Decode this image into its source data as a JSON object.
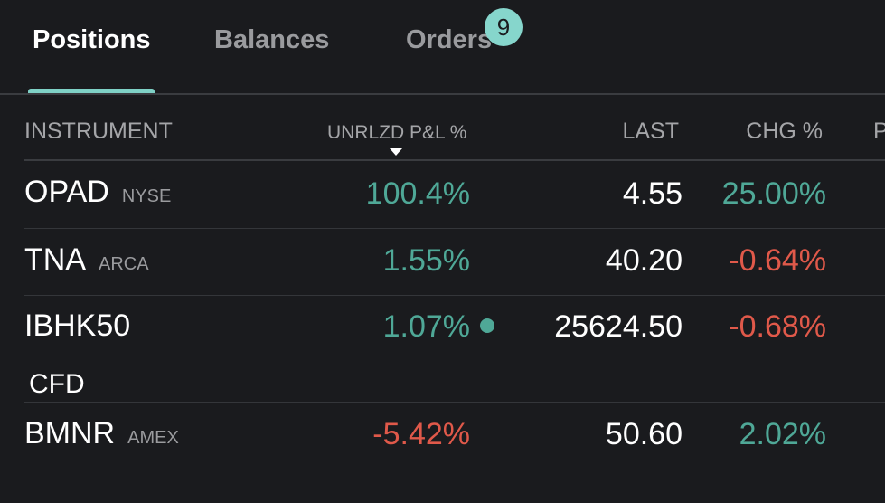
{
  "tabs": {
    "positions": "Positions",
    "balances": "Balances",
    "orders": "Orders",
    "orders_badge": "9"
  },
  "header": {
    "instrument": "INSTRUMENT",
    "pnl": "UNRLZD P&L %",
    "last": "LAST",
    "chg": "CHG %",
    "next_col": "P"
  },
  "rows": [
    {
      "symbol": "OPAD",
      "exchange": "NYSE",
      "pnl": "100.4%",
      "last": "4.55",
      "chg": "25.00%"
    },
    {
      "symbol": "TNA",
      "exchange": "ARCA",
      "pnl": "1.55%",
      "last": "40.20",
      "chg": "-0.64%"
    },
    {
      "symbol": "IBHK50",
      "exchange": "CFD",
      "pnl": "1.07%",
      "last": "25624.50",
      "chg": "-0.68%"
    },
    {
      "symbol": "BMNR",
      "exchange": "AMEX",
      "pnl": "-5.42%",
      "last": "50.60",
      "chg": "2.02%"
    }
  ],
  "colors": {
    "positive": "#4fa897",
    "negative": "#e0594a",
    "accent": "#7fd1c6"
  }
}
